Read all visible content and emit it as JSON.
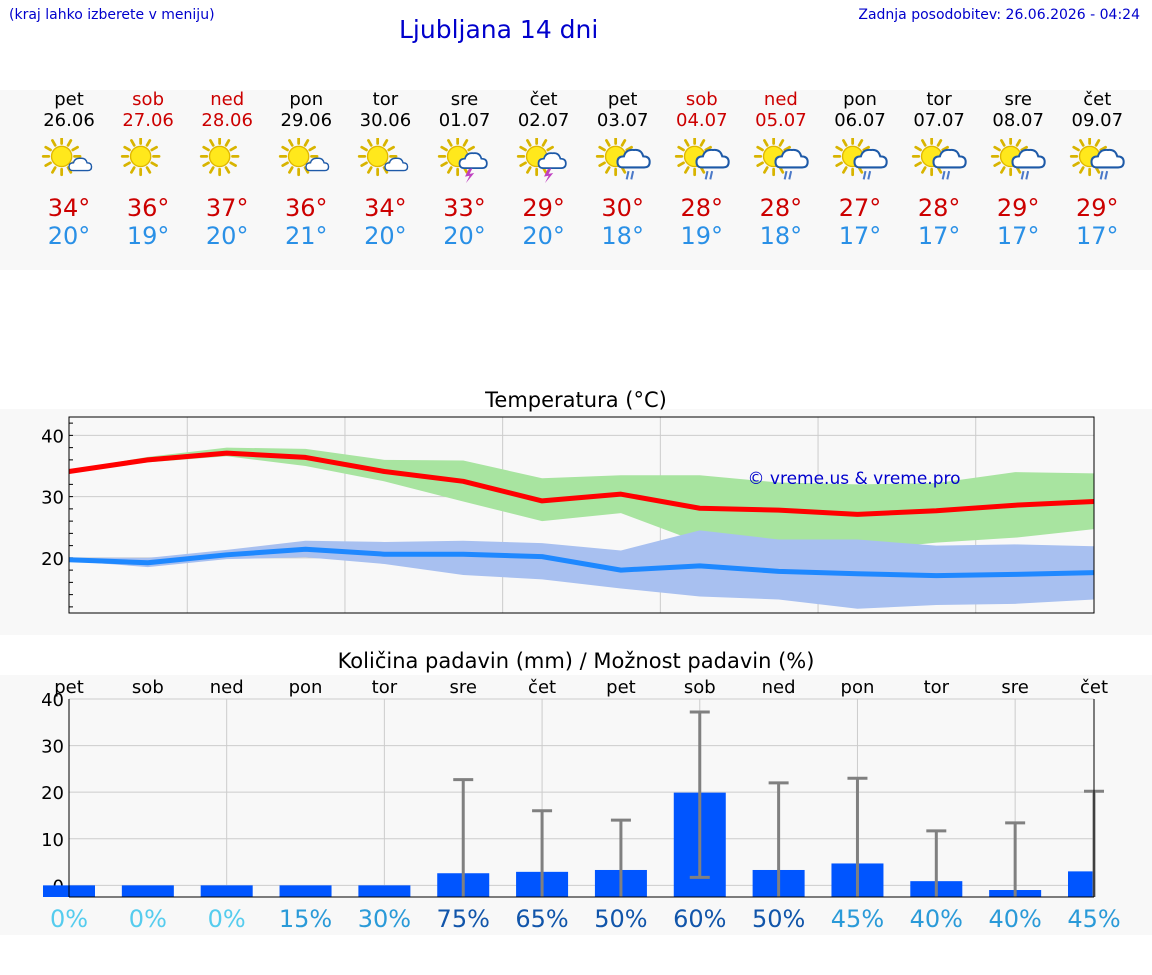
{
  "header": {
    "hint": "(kraj lahko izberete v meniju)",
    "title": "Ljubljana 14 dni",
    "updated": "Zadnja posodobitev: 26.06.2026 - 04:24"
  },
  "colors": {
    "weekend": "#cc0000",
    "tmax": "#cc0000",
    "tmin": "#2a90e6",
    "temp_max_line": "#ff0000",
    "temp_max_band": "#a8e4a0",
    "temp_min_line": "#1e88ff",
    "temp_min_band": "#a8c0f0",
    "precip_bar": "#0055ff",
    "watermark": "#0000cc"
  },
  "days": [
    {
      "name": "pet",
      "date": "26.06",
      "weekend": false,
      "icon": "sun-cloud-icon",
      "tmax": "34°",
      "tmin": "20°"
    },
    {
      "name": "sob",
      "date": "27.06",
      "weekend": true,
      "icon": "sun-icon",
      "tmax": "36°",
      "tmin": "19°"
    },
    {
      "name": "ned",
      "date": "28.06",
      "weekend": true,
      "icon": "sun-icon",
      "tmax": "37°",
      "tmin": "20°"
    },
    {
      "name": "pon",
      "date": "29.06",
      "weekend": false,
      "icon": "sun-cloud-icon",
      "tmax": "36°",
      "tmin": "21°"
    },
    {
      "name": "tor",
      "date": "30.06",
      "weekend": false,
      "icon": "sun-cloud-icon",
      "tmax": "34°",
      "tmin": "20°"
    },
    {
      "name": "sre",
      "date": "01.07",
      "weekend": false,
      "icon": "sun-thunder-icon",
      "tmax": "33°",
      "tmin": "20°"
    },
    {
      "name": "čet",
      "date": "02.07",
      "weekend": false,
      "icon": "sun-thunder-icon",
      "tmax": "29°",
      "tmin": "20°"
    },
    {
      "name": "pet",
      "date": "03.07",
      "weekend": false,
      "icon": "sun-rain-icon",
      "tmax": "30°",
      "tmin": "18°"
    },
    {
      "name": "sob",
      "date": "04.07",
      "weekend": true,
      "icon": "sun-rain-icon",
      "tmax": "28°",
      "tmin": "19°"
    },
    {
      "name": "ned",
      "date": "05.07",
      "weekend": true,
      "icon": "sun-rain-icon",
      "tmax": "28°",
      "tmin": "18°"
    },
    {
      "name": "pon",
      "date": "06.07",
      "weekend": false,
      "icon": "sun-rain-icon",
      "tmax": "27°",
      "tmin": "17°"
    },
    {
      "name": "tor",
      "date": "07.07",
      "weekend": false,
      "icon": "sun-rain-icon",
      "tmax": "28°",
      "tmin": "17°"
    },
    {
      "name": "sre",
      "date": "08.07",
      "weekend": false,
      "icon": "sun-rain-icon",
      "tmax": "29°",
      "tmin": "17°"
    },
    {
      "name": "čet",
      "date": "09.07",
      "weekend": false,
      "icon": "sun-rain-icon",
      "tmax": "29°",
      "tmin": "17°"
    }
  ],
  "chart_data": [
    {
      "type": "line",
      "title": "Temperatura (°C)",
      "xlabel": "",
      "ylabel": "",
      "ylim": [
        11,
        43
      ],
      "yticks": [
        20,
        30,
        40
      ],
      "grid": true,
      "watermark": "© vreme.us & vreme.pro",
      "x_days": [
        1,
        2,
        3,
        4,
        5,
        6,
        7,
        8,
        9,
        10,
        11,
        12,
        13,
        14
      ],
      "series": [
        {
          "values": [
            34.1,
            36.0,
            37.1,
            36.4,
            34.1,
            32.5,
            29.3,
            30.4,
            28.1,
            27.8,
            27.1,
            27.7,
            28.6,
            29.2
          ],
          "band_low": [
            34.0,
            35.6,
            36.6,
            35.0,
            32.5,
            29.2,
            26.0,
            27.3,
            22.5,
            22.3,
            21.2,
            22.5,
            23.3,
            24.7
          ],
          "band_high": [
            34.3,
            36.5,
            38.0,
            37.8,
            36.0,
            35.9,
            33.0,
            33.5,
            33.5,
            32.3,
            32.0,
            32.2,
            34.0,
            33.8
          ]
        },
        {
          "values": [
            19.7,
            19.2,
            20.5,
            21.4,
            20.6,
            20.6,
            20.2,
            18.0,
            18.7,
            17.8,
            17.4,
            17.1,
            17.3,
            17.6
          ],
          "band_low": [
            19.5,
            18.5,
            19.8,
            20.1,
            19.0,
            17.2,
            16.5,
            15.0,
            13.7,
            13.2,
            11.7,
            12.3,
            12.5,
            13.2
          ],
          "band_high": [
            20.0,
            20.0,
            21.3,
            22.8,
            22.6,
            22.8,
            22.4,
            21.2,
            24.5,
            23.0,
            23.0,
            22.0,
            22.2,
            21.9
          ]
        }
      ]
    },
    {
      "type": "bar",
      "title": "Količina padavin (mm) / Možnost padavin (%)",
      "xlabel": "",
      "ylabel": "",
      "ylim": [
        -2.5,
        40
      ],
      "yticks": [
        0,
        10,
        20,
        30,
        40
      ],
      "grid": true,
      "categories": [
        "pet",
        "sob",
        "ned",
        "pon",
        "tor",
        "sre",
        "čet",
        "pet",
        "sob",
        "ned",
        "pon",
        "tor",
        "sre",
        "čet"
      ],
      "values": [
        0,
        0,
        0,
        0,
        0,
        2.6,
        2.9,
        3.3,
        19.9,
        3.3,
        4.7,
        0.9,
        -1.0,
        3.0
      ],
      "error_high": [
        0,
        0,
        0,
        0,
        0,
        22.7,
        16.0,
        14.0,
        37.2,
        22.0,
        23.0,
        11.7,
        13.4,
        20.2
      ],
      "error_low": [
        0,
        0,
        0,
        0,
        0,
        0,
        0,
        0,
        1.7,
        0,
        0,
        0,
        0,
        0
      ],
      "probability": [
        "0%",
        "0%",
        "0%",
        "15%",
        "30%",
        "75%",
        "65%",
        "50%",
        "60%",
        "50%",
        "45%",
        "40%",
        "40%",
        "45%"
      ],
      "probability_colors": [
        "#55ccee",
        "#55ccee",
        "#55ccee",
        "#2a9ad8",
        "#2a9ad8",
        "#1155aa",
        "#1155aa",
        "#1155aa",
        "#1155aa",
        "#1155aa",
        "#2a9ad8",
        "#2a9ad8",
        "#2a9ad8",
        "#2a9ad8"
      ]
    }
  ]
}
